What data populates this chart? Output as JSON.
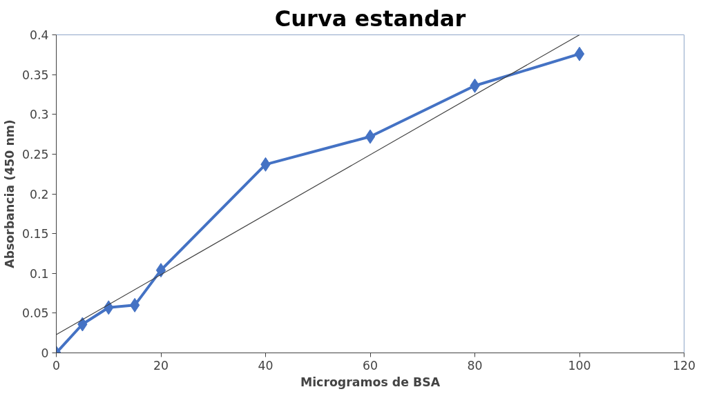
{
  "chart_data": {
    "type": "line",
    "title": "Curva estandar",
    "xlabel": "Microgramos de BSA",
    "ylabel": "Absorbancia (450 nm)",
    "xlim": [
      0,
      120
    ],
    "xticks": [
      0,
      20,
      40,
      60,
      80,
      100,
      120
    ],
    "ylim": [
      0,
      0.4
    ],
    "yticks": [
      0,
      0.05,
      0.1,
      0.15,
      0.2,
      0.25,
      0.3,
      0.35,
      0.4
    ],
    "grid": false,
    "series": [
      {
        "color": "#4472c4",
        "marker": "diamond",
        "x": [
          0,
          5,
          10,
          15,
          20,
          40,
          60,
          80,
          100
        ],
        "values": [
          0,
          0.036,
          0.057,
          0.06,
          0.104,
          0.237,
          0.272,
          0.336,
          0.376
        ]
      },
      {
        "type": "line",
        "color": "#404040",
        "marker": "none",
        "x": [
          0,
          100
        ],
        "values": [
          0.023,
          0.4
        ]
      }
    ]
  }
}
